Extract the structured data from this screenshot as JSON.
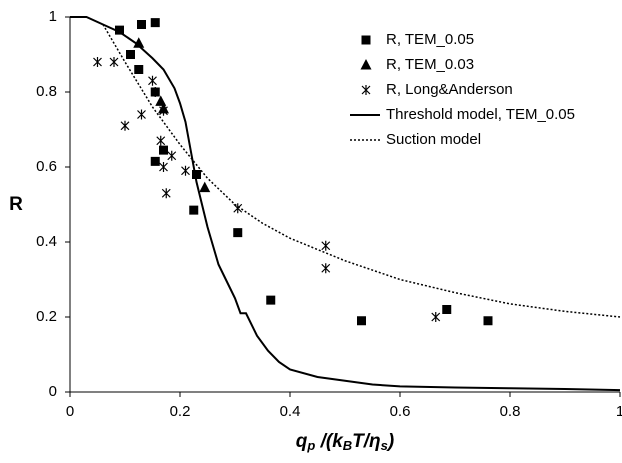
{
  "chart_data": {
    "type": "scatter",
    "xlabel": [
      "q",
      "p",
      " /(k",
      "B",
      "T/η",
      "s",
      ")"
    ],
    "ylabel": "R",
    "xlim": [
      0,
      1
    ],
    "ylim": [
      0,
      1
    ],
    "xticks": [
      0,
      0.2,
      0.4,
      0.6,
      0.8,
      1
    ],
    "yticks": [
      0,
      0.2,
      0.4,
      0.6,
      0.8,
      1
    ],
    "grid": false,
    "legend": "upper right",
    "series": [
      {
        "name": "R, TEM_0.05",
        "type": "scatter",
        "marker": "square",
        "color": "#000000",
        "x": [
          0.09,
          0.13,
          0.155,
          0.11,
          0.125,
          0.155,
          0.155,
          0.17,
          0.23,
          0.225,
          0.305,
          0.365,
          0.53,
          0.685,
          0.76
        ],
        "values": [
          0.965,
          0.98,
          0.985,
          0.9,
          0.86,
          0.8,
          0.615,
          0.645,
          0.58,
          0.485,
          0.425,
          0.245,
          0.19,
          0.22,
          0.19
        ]
      },
      {
        "name": "R, TEM_0.03",
        "type": "scatter",
        "marker": "triangle",
        "color": "#000000",
        "x": [
          0.125,
          0.165,
          0.17,
          0.245
        ],
        "values": [
          0.93,
          0.775,
          0.755,
          0.545
        ]
      },
      {
        "name": "R, Long&Anderson",
        "type": "scatter",
        "marker": "asterisk",
        "color": "#000000",
        "x": [
          0.05,
          0.08,
          0.1,
          0.13,
          0.15,
          0.155,
          0.165,
          0.17,
          0.175,
          0.17,
          0.185,
          0.21,
          0.305,
          0.465,
          0.465,
          0.665
        ],
        "values": [
          0.88,
          0.88,
          0.71,
          0.74,
          0.83,
          0.8,
          0.67,
          0.6,
          0.53,
          0.75,
          0.63,
          0.59,
          0.49,
          0.39,
          0.33,
          0.2
        ]
      },
      {
        "name": "Threshold model, TEM_0.05",
        "type": "line",
        "dash": "solid",
        "color": "#000000",
        "x": [
          0,
          0.03,
          0.06,
          0.09,
          0.12,
          0.15,
          0.17,
          0.19,
          0.2,
          0.21,
          0.22,
          0.23,
          0.24,
          0.25,
          0.26,
          0.27,
          0.28,
          0.29,
          0.3,
          0.31,
          0.32,
          0.34,
          0.36,
          0.38,
          0.4,
          0.45,
          0.5,
          0.55,
          0.6,
          0.7,
          0.8,
          0.9,
          1
        ],
        "values": [
          1,
          1,
          0.98,
          0.96,
          0.93,
          0.89,
          0.86,
          0.81,
          0.77,
          0.72,
          0.64,
          0.56,
          0.5,
          0.44,
          0.39,
          0.34,
          0.31,
          0.28,
          0.25,
          0.21,
          0.21,
          0.15,
          0.11,
          0.08,
          0.06,
          0.04,
          0.03,
          0.02,
          0.015,
          0.012,
          0.01,
          0.008,
          0.005
        ]
      },
      {
        "name": "Suction model",
        "type": "line",
        "dash": "dotted",
        "color": "#000000",
        "x": [
          0.06,
          0.1,
          0.15,
          0.2,
          0.25,
          0.3,
          0.35,
          0.4,
          0.5,
          0.6,
          0.7,
          0.8,
          0.9,
          1
        ],
        "values": [
          0.98,
          0.88,
          0.76,
          0.66,
          0.57,
          0.5,
          0.45,
          0.41,
          0.35,
          0.3,
          0.265,
          0.235,
          0.215,
          0.2
        ]
      }
    ]
  }
}
